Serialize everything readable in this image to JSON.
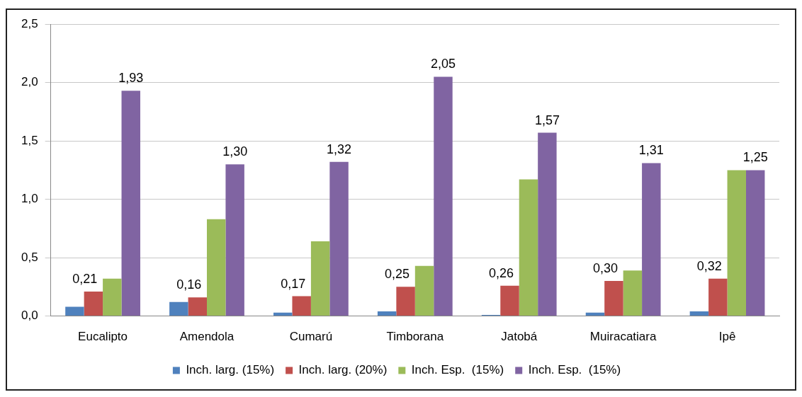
{
  "chart_data": {
    "type": "bar",
    "categories": [
      "Eucalipto",
      "Amendola",
      "Cumarú",
      "Timborana",
      "Jatobá",
      "Muiracatiara",
      "Ipê"
    ],
    "series": [
      {
        "name": "Inch. larg. (15%)",
        "color": "#4f81bd",
        "values": [
          0.08,
          0.12,
          0.03,
          0.04,
          0.01,
          0.03,
          0.04
        ]
      },
      {
        "name": "Inch. larg. (20%)",
        "color": "#c0504d",
        "values": [
          0.21,
          0.16,
          0.17,
          0.25,
          0.26,
          0.3,
          0.32
        ],
        "value_labels": [
          "0,21",
          "0,16",
          "0,17",
          "0,25",
          "0,26",
          "0,30",
          "0,32"
        ]
      },
      {
        "name": "Inch. Esp.  (15%)",
        "color": "#9bbb59",
        "values": [
          0.32,
          0.83,
          0.64,
          0.43,
          1.17,
          0.39,
          1.25
        ]
      },
      {
        "name": "Inch. Esp.  (15%)",
        "color": "#8064a2",
        "values": [
          1.93,
          1.3,
          1.32,
          2.05,
          1.57,
          1.31,
          1.25
        ],
        "value_labels": [
          "1,93",
          "1,30",
          "1,32",
          "2,05",
          "1,57",
          "1,31",
          "1,25"
        ]
      }
    ],
    "ylim": [
      0,
      2.5
    ],
    "yticks": [
      {
        "value": 0,
        "label": "0,0"
      },
      {
        "value": 0.5,
        "label": "0,5"
      },
      {
        "value": 1,
        "label": "1,0"
      },
      {
        "value": 1.5,
        "label": "1,5"
      },
      {
        "value": 2,
        "label": "2,0"
      },
      {
        "value": 2.5,
        "label": "2,5"
      }
    ],
    "grid": "y",
    "legend": "bottom"
  }
}
